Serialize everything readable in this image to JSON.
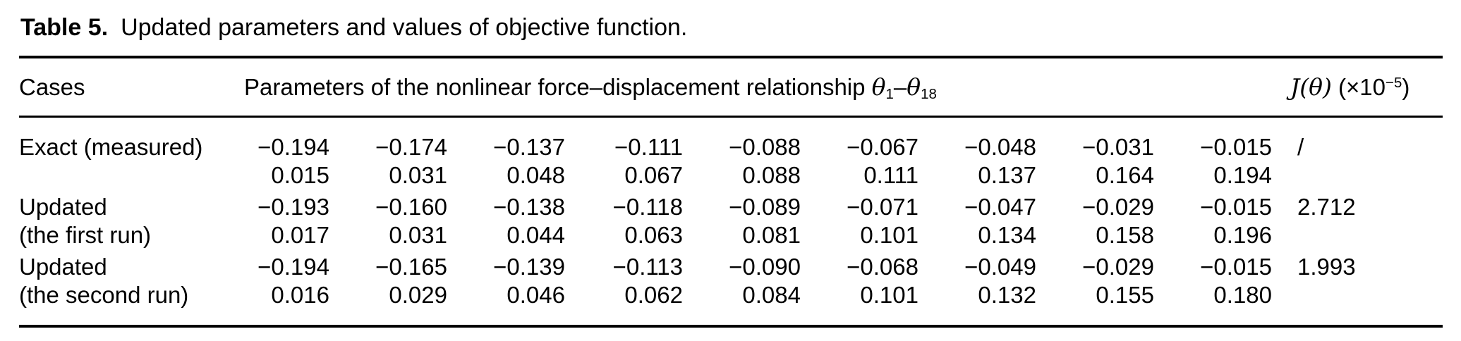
{
  "caption": {
    "label": "Table 5.",
    "text": "Updated parameters and values of objective function."
  },
  "header": {
    "cases": "Cases",
    "parameters_text": "Parameters of the nonlinear force–displacement relationship ",
    "theta": "θ",
    "sub_start": "1",
    "dash": "–",
    "sub_end": "18",
    "objective_math": "J(θ)",
    "objective_mid": " (×10",
    "objective_sup": "−5",
    "objective_end": ")"
  },
  "rows": [
    {
      "label_line1": "Exact (measured)",
      "label_line2": "",
      "values_line1": [
        "−0.194",
        "−0.174",
        "−0.137",
        "−0.111",
        "−0.088",
        "−0.067",
        "−0.048",
        "−0.031",
        "−0.015"
      ],
      "values_line2": [
        "0.015",
        "0.031",
        "0.048",
        "0.067",
        "0.088",
        "0.111",
        "0.137",
        "0.164",
        "0.194"
      ],
      "objective": "/"
    },
    {
      "label_line1": "Updated",
      "label_line2": "(the first run)",
      "values_line1": [
        "−0.193",
        "−0.160",
        "−0.138",
        "−0.118",
        "−0.089",
        "−0.071",
        "−0.047",
        "−0.029",
        "−0.015"
      ],
      "values_line2": [
        "0.017",
        "0.031",
        "0.044",
        "0.063",
        "0.081",
        "0.101",
        "0.134",
        "0.158",
        "0.196"
      ],
      "objective": "2.712"
    },
    {
      "label_line1": "Updated",
      "label_line2": "(the second run)",
      "values_line1": [
        "−0.194",
        "−0.165",
        "−0.139",
        "−0.113",
        "−0.090",
        "−0.068",
        "−0.049",
        "−0.029",
        "−0.015"
      ],
      "values_line2": [
        "0.016",
        "0.029",
        "0.046",
        "0.062",
        "0.084",
        "0.101",
        "0.132",
        "0.155",
        "0.180"
      ],
      "objective": "1.993"
    }
  ]
}
